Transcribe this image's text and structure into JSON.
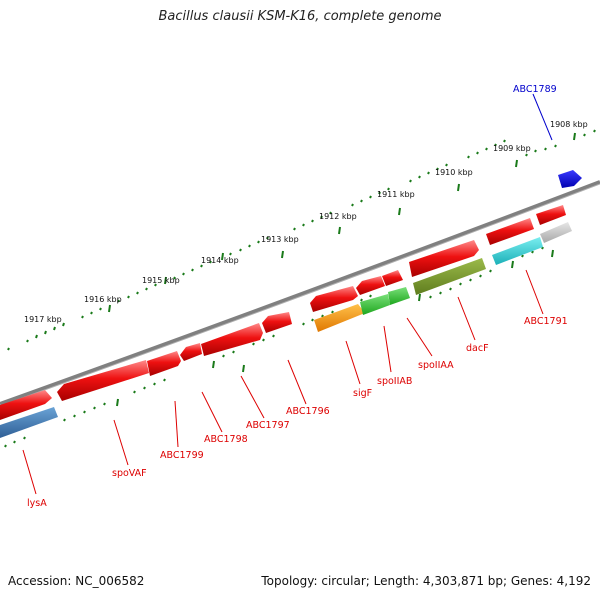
{
  "title": "Bacillus clausii KSM-K16, complete genome",
  "footer": {
    "accession": "Accession: NC_006582",
    "topology": "Topology: circular; Length: 4,303,871 bp; Genes: 4,192"
  },
  "colors": {
    "gene_red": "#ee1111",
    "label_red": "#dd0000",
    "label_blue": "#0000cc",
    "backbone": "#808080",
    "tick_green": "#1a7a1a"
  },
  "kbp_labels": [
    "1917 kbp",
    "1916 kbp",
    "1915 kbp",
    "1914 kbp",
    "1913 kbp",
    "1912 kbp",
    "1911 kbp",
    "1910 kbp",
    "1909 kbp",
    "1908 kbp"
  ],
  "gene_labels": [
    {
      "text": "ABC1789",
      "color": "blue"
    },
    {
      "text": "ABC1791",
      "color": "red"
    },
    {
      "text": "dacF",
      "color": "red"
    },
    {
      "text": "spoIIAA",
      "color": "red"
    },
    {
      "text": "spoIIAB",
      "color": "red"
    },
    {
      "text": "sigF",
      "color": "red"
    },
    {
      "text": "ABC1796",
      "color": "red"
    },
    {
      "text": "ABC1797",
      "color": "red"
    },
    {
      "text": "ABC1798",
      "color": "red"
    },
    {
      "text": "ABC1799",
      "color": "red"
    },
    {
      "text": "spoVAF",
      "color": "red"
    },
    {
      "text": "lysA",
      "color": "red"
    }
  ]
}
